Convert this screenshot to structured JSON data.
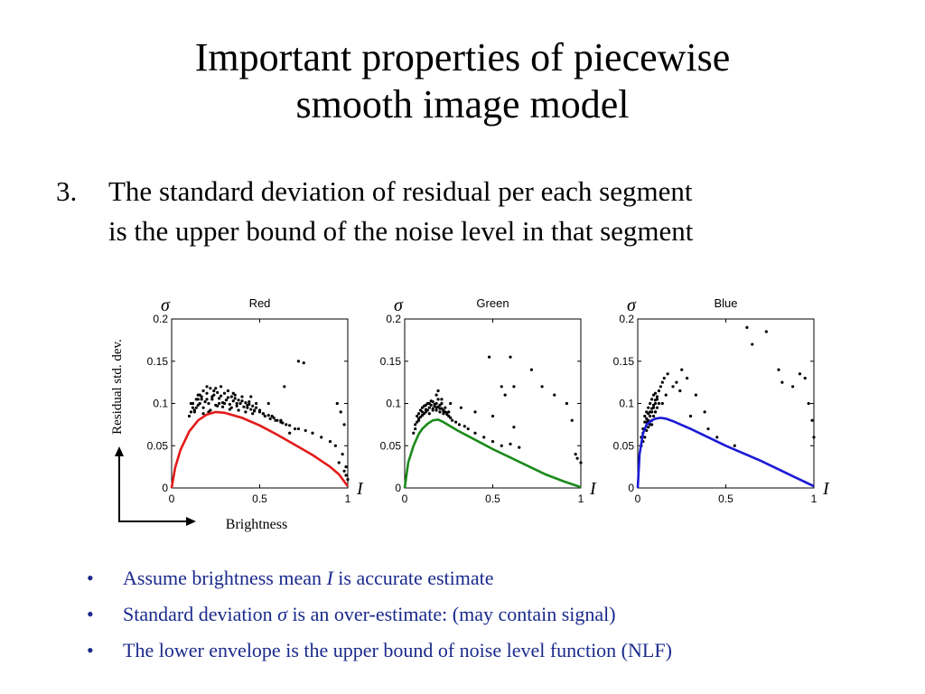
{
  "slide": {
    "title_line1": "Important properties of piecewise",
    "title_line2": "smooth image model",
    "point_number": "3.",
    "point_line1": "The standard deviation of residual per each segment",
    "point_line2": "is the upper bound of the noise level in that segment"
  },
  "axes_annotation": {
    "ylabel": "Residual std. dev.",
    "xlabel": "Brightness",
    "sigma_symbol": "σ",
    "intensity_symbol": "I"
  },
  "bullets": [
    {
      "pre": "Assume brightness mean ",
      "italic": "I",
      "post": " is accurate estimate"
    },
    {
      "pre": "Standard deviation ",
      "italic": "σ",
      "post": " is an over-estimate: (may contain signal)"
    },
    {
      "pre": "The lower envelope is the upper bound of noise level function (NLF)",
      "italic": "",
      "post": ""
    }
  ],
  "colors": {
    "red": "#e41a1a",
    "green": "#1a8a1a",
    "blue": "#1a1ad6",
    "bullet_text": "#1a2a8c"
  },
  "chart_data": [
    {
      "type": "scatter",
      "title": "Red",
      "xlim": [
        0,
        1
      ],
      "ylim": [
        0,
        0.2
      ],
      "xticks": [
        "0",
        "0.5",
        "1"
      ],
      "yticks": [
        "0",
        "0.05",
        "0.1",
        "0.15",
        "0.2"
      ],
      "line_color": "#e41a1a",
      "curve": {
        "x": [
          0,
          0.02,
          0.05,
          0.1,
          0.15,
          0.2,
          0.25,
          0.3,
          0.4,
          0.5,
          0.6,
          0.7,
          0.8,
          0.9,
          0.95,
          1.0
        ],
        "y": [
          0,
          0.024,
          0.045,
          0.067,
          0.08,
          0.087,
          0.09,
          0.089,
          0.083,
          0.074,
          0.063,
          0.051,
          0.039,
          0.025,
          0.016,
          0.002
        ]
      },
      "points": {
        "x": [
          0.1,
          0.11,
          0.12,
          0.12,
          0.13,
          0.14,
          0.15,
          0.15,
          0.16,
          0.17,
          0.18,
          0.18,
          0.19,
          0.2,
          0.21,
          0.22,
          0.23,
          0.24,
          0.25,
          0.26,
          0.27,
          0.28,
          0.29,
          0.3,
          0.31,
          0.32,
          0.33,
          0.34,
          0.35,
          0.36,
          0.37,
          0.38,
          0.39,
          0.4,
          0.41,
          0.42,
          0.43,
          0.44,
          0.45,
          0.46,
          0.47,
          0.48,
          0.5,
          0.52,
          0.55,
          0.58,
          0.6,
          0.62,
          0.65,
          0.7,
          0.12,
          0.16,
          0.2,
          0.24,
          0.28,
          0.32,
          0.36,
          0.4,
          0.44,
          0.48,
          0.14,
          0.18,
          0.22,
          0.26,
          0.3,
          0.34,
          0.38,
          0.42,
          0.46,
          0.5,
          0.53,
          0.56,
          0.59,
          0.63,
          0.67,
          0.72,
          0.76,
          0.8,
          0.85,
          0.9,
          0.93,
          0.95,
          0.97,
          0.98,
          0.99,
          0.96,
          0.94,
          0.99,
          0.98,
          1.0,
          0.67,
          0.72,
          0.75,
          0.64,
          0.55,
          0.45,
          0.35,
          0.25,
          0.15,
          0.11,
          0.13,
          0.17,
          0.21,
          0.27,
          0.33,
          0.37,
          0.43,
          0.47,
          0.52,
          0.57,
          0.62,
          0.2,
          0.23,
          0.29
        ],
        "y": [
          0.085,
          0.09,
          0.095,
          0.1,
          0.092,
          0.105,
          0.098,
          0.11,
          0.1,
          0.108,
          0.095,
          0.115,
          0.102,
          0.112,
          0.1,
          0.118,
          0.105,
          0.11,
          0.098,
          0.113,
          0.106,
          0.109,
          0.101,
          0.112,
          0.104,
          0.107,
          0.099,
          0.108,
          0.103,
          0.106,
          0.097,
          0.104,
          0.1,
          0.103,
          0.096,
          0.101,
          0.095,
          0.099,
          0.093,
          0.097,
          0.091,
          0.095,
          0.092,
          0.088,
          0.086,
          0.083,
          0.08,
          0.078,
          0.075,
          0.07,
          0.1,
          0.11,
          0.105,
          0.115,
          0.12,
          0.115,
          0.11,
          0.108,
          0.102,
          0.1,
          0.095,
          0.088,
          0.092,
          0.097,
          0.1,
          0.095,
          0.092,
          0.09,
          0.088,
          0.09,
          0.085,
          0.082,
          0.08,
          0.077,
          0.074,
          0.07,
          0.068,
          0.065,
          0.06,
          0.055,
          0.05,
          0.03,
          0.04,
          0.02,
          0.025,
          0.09,
          0.1,
          0.015,
          0.075,
          0.01,
          0.065,
          0.15,
          0.148,
          0.12,
          0.1,
          0.108,
          0.112,
          0.118,
          0.105,
          0.1,
          0.09,
          0.105,
          0.09,
          0.1,
          0.093,
          0.1,
          0.098,
          0.092,
          0.088,
          0.085,
          0.08,
          0.12,
          0.108,
          0.096
        ]
      }
    },
    {
      "type": "scatter",
      "title": "Green",
      "xlim": [
        0,
        1
      ],
      "ylim": [
        0,
        0.2
      ],
      "xticks": [
        "0",
        "0.5",
        "1"
      ],
      "yticks": [
        "0",
        "0.05",
        "0.1",
        "0.15",
        "0.2"
      ],
      "line_color": "#1a8a1a",
      "curve": {
        "x": [
          0,
          0.02,
          0.05,
          0.08,
          0.1,
          0.13,
          0.16,
          0.19,
          0.22,
          0.26,
          0.3,
          0.4,
          0.5,
          0.6,
          0.7,
          0.8,
          0.9,
          1.0
        ],
        "y": [
          0,
          0.03,
          0.05,
          0.064,
          0.07,
          0.076,
          0.08,
          0.081,
          0.078,
          0.073,
          0.068,
          0.057,
          0.046,
          0.036,
          0.026,
          0.016,
          0.008,
          0.001
        ]
      },
      "points": {
        "x": [
          0.05,
          0.06,
          0.07,
          0.08,
          0.08,
          0.09,
          0.1,
          0.1,
          0.11,
          0.12,
          0.12,
          0.13,
          0.14,
          0.14,
          0.15,
          0.16,
          0.16,
          0.17,
          0.18,
          0.18,
          0.19,
          0.2,
          0.2,
          0.21,
          0.22,
          0.22,
          0.23,
          0.24,
          0.25,
          0.26,
          0.07,
          0.09,
          0.11,
          0.13,
          0.15,
          0.17,
          0.19,
          0.21,
          0.23,
          0.25,
          0.06,
          0.08,
          0.1,
          0.12,
          0.14,
          0.16,
          0.18,
          0.2,
          0.22,
          0.24,
          0.27,
          0.29,
          0.31,
          0.34,
          0.36,
          0.4,
          0.45,
          0.5,
          0.55,
          0.6,
          0.65,
          0.48,
          0.55,
          0.57,
          0.6,
          0.62,
          0.72,
          0.78,
          0.85,
          0.92,
          0.95,
          0.97,
          0.98,
          1.0,
          0.18,
          0.19,
          0.21,
          0.26,
          0.32,
          0.4,
          0.5,
          0.62
        ],
        "y": [
          0.065,
          0.07,
          0.078,
          0.08,
          0.088,
          0.084,
          0.09,
          0.095,
          0.088,
          0.093,
          0.098,
          0.092,
          0.1,
          0.095,
          0.098,
          0.102,
          0.094,
          0.097,
          0.1,
          0.092,
          0.096,
          0.098,
          0.09,
          0.094,
          0.092,
          0.088,
          0.09,
          0.087,
          0.085,
          0.083,
          0.085,
          0.092,
          0.097,
          0.1,
          0.103,
          0.099,
          0.105,
          0.1,
          0.095,
          0.09,
          0.075,
          0.082,
          0.086,
          0.09,
          0.088,
          0.092,
          0.095,
          0.094,
          0.091,
          0.089,
          0.08,
          0.078,
          0.075,
          0.073,
          0.07,
          0.065,
          0.06,
          0.055,
          0.05,
          0.052,
          0.048,
          0.155,
          0.12,
          0.11,
          0.155,
          0.12,
          0.14,
          0.12,
          0.11,
          0.1,
          0.08,
          0.04,
          0.035,
          0.03,
          0.11,
          0.115,
          0.105,
          0.1,
          0.095,
          0.09,
          0.085,
          0.072
        ]
      }
    },
    {
      "type": "scatter",
      "title": "Blue",
      "xlim": [
        0,
        1
      ],
      "ylim": [
        0,
        0.2
      ],
      "xticks": [
        "0",
        "0.5",
        "1"
      ],
      "yticks": [
        "0",
        "0.05",
        "0.1",
        "0.15",
        "0.2"
      ],
      "line_color": "#1a1ad6",
      "curve": {
        "x": [
          0,
          0.01,
          0.03,
          0.05,
          0.08,
          0.1,
          0.13,
          0.16,
          0.2,
          0.3,
          0.4,
          0.5,
          0.6,
          0.7,
          0.8,
          0.9,
          1.0
        ],
        "y": [
          0,
          0.04,
          0.065,
          0.075,
          0.08,
          0.082,
          0.083,
          0.082,
          0.079,
          0.07,
          0.06,
          0.05,
          0.041,
          0.032,
          0.022,
          0.012,
          0.002
        ]
      },
      "points": {
        "x": [
          0.02,
          0.03,
          0.03,
          0.04,
          0.04,
          0.05,
          0.05,
          0.06,
          0.06,
          0.07,
          0.07,
          0.08,
          0.08,
          0.09,
          0.09,
          0.1,
          0.1,
          0.11,
          0.11,
          0.12,
          0.02,
          0.03,
          0.04,
          0.05,
          0.06,
          0.07,
          0.08,
          0.09,
          0.1,
          0.11,
          0.04,
          0.05,
          0.06,
          0.07,
          0.08,
          0.09,
          0.1,
          0.12,
          0.13,
          0.14,
          0.15,
          0.17,
          0.2,
          0.22,
          0.25,
          0.28,
          0.33,
          0.38,
          0.45,
          0.55,
          0.62,
          0.65,
          0.73,
          0.8,
          0.82,
          0.88,
          0.92,
          0.95,
          0.97,
          0.99,
          1.0,
          0.08,
          0.1,
          0.14,
          0.16,
          0.24,
          0.3,
          0.4
        ],
        "y": [
          0.05,
          0.055,
          0.065,
          0.06,
          0.07,
          0.068,
          0.078,
          0.072,
          0.08,
          0.075,
          0.085,
          0.08,
          0.09,
          0.085,
          0.095,
          0.09,
          0.1,
          0.095,
          0.105,
          0.1,
          0.06,
          0.07,
          0.078,
          0.082,
          0.088,
          0.09,
          0.094,
          0.098,
          0.104,
          0.108,
          0.085,
          0.09,
          0.095,
          0.1,
          0.105,
          0.11,
          0.112,
          0.115,
          0.12,
          0.125,
          0.13,
          0.135,
          0.12,
          0.125,
          0.14,
          0.13,
          0.11,
          0.09,
          0.06,
          0.05,
          0.19,
          0.17,
          0.185,
          0.14,
          0.125,
          0.12,
          0.135,
          0.13,
          0.1,
          0.08,
          0.06,
          0.075,
          0.09,
          0.1,
          0.11,
          0.115,
          0.085,
          0.07
        ]
      }
    }
  ]
}
